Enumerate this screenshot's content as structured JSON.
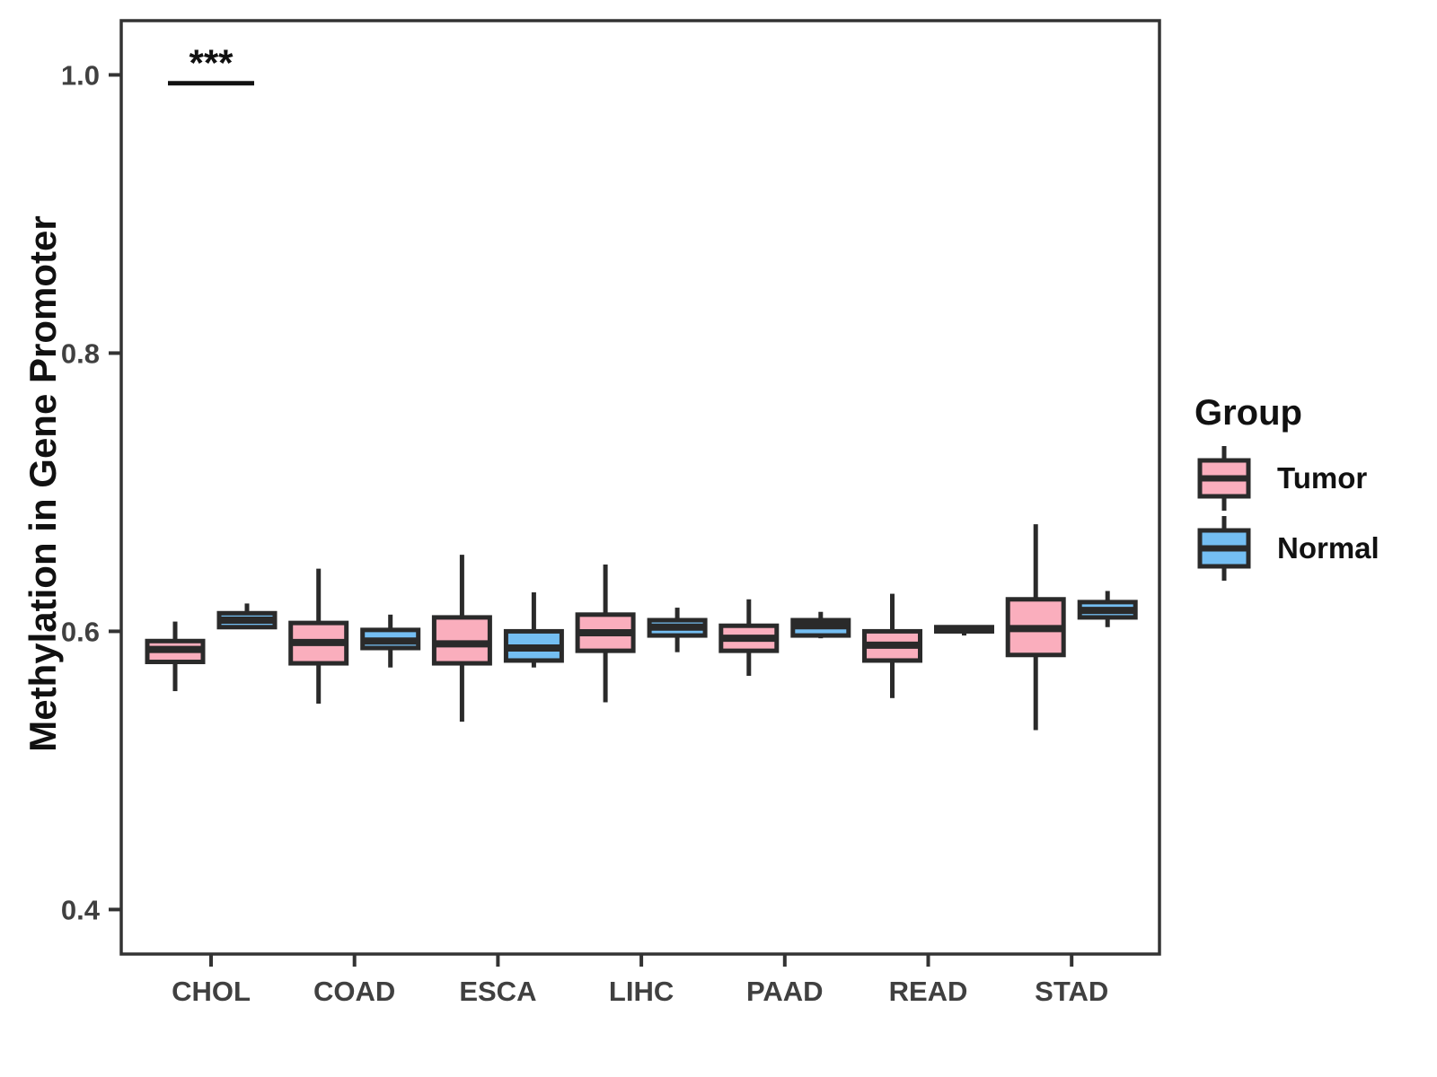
{
  "chart_data": {
    "type": "boxplot",
    "title": "",
    "ylabel": "Methylation in Gene Promoter",
    "xlabel": "",
    "categories": [
      "CHOL",
      "COAD",
      "ESCA",
      "LIHC",
      "PAAD",
      "READ",
      "STAD"
    ],
    "y_ticks": [
      {
        "v": 1.0,
        "label": "1.0"
      },
      {
        "v": 0.8,
        "label": "0.8"
      },
      {
        "v": 0.6,
        "label": "0.6"
      },
      {
        "v": 0.4,
        "label": "0.4"
      }
    ],
    "ylim": [
      0.368,
      1.039
    ],
    "grid": "off",
    "legend": {
      "title": "Group",
      "position": "right",
      "items": [
        {
          "label": "Tumor",
          "color": "#FAAEBD"
        },
        {
          "label": "Normal",
          "color": "#74BEF2"
        }
      ]
    },
    "series": [
      {
        "name": "Tumor",
        "color": "#FAAEBD",
        "boxes": [
          {
            "category": "CHOL",
            "low": 0.557,
            "q1": 0.578,
            "median": 0.587,
            "q3": 0.593,
            "high": 0.607
          },
          {
            "category": "COAD",
            "low": 0.548,
            "q1": 0.577,
            "median": 0.592,
            "q3": 0.606,
            "high": 0.645
          },
          {
            "category": "ESCA",
            "low": 0.535,
            "q1": 0.577,
            "median": 0.591,
            "q3": 0.61,
            "high": 0.655
          },
          {
            "category": "LIHC",
            "low": 0.549,
            "q1": 0.586,
            "median": 0.599,
            "q3": 0.612,
            "high": 0.648
          },
          {
            "category": "PAAD",
            "low": 0.568,
            "q1": 0.586,
            "median": 0.595,
            "q3": 0.604,
            "high": 0.623
          },
          {
            "category": "READ",
            "low": 0.552,
            "q1": 0.579,
            "median": 0.59,
            "q3": 0.6,
            "high": 0.627
          },
          {
            "category": "STAD",
            "low": 0.529,
            "q1": 0.583,
            "median": 0.602,
            "q3": 0.623,
            "high": 0.677
          }
        ]
      },
      {
        "name": "Normal",
        "color": "#74BEF2",
        "boxes": [
          {
            "category": "CHOL",
            "low": 0.603,
            "q1": 0.603,
            "median": 0.608,
            "q3": 0.613,
            "high": 0.62
          },
          {
            "category": "COAD",
            "low": 0.574,
            "q1": 0.588,
            "median": 0.593,
            "q3": 0.601,
            "high": 0.612
          },
          {
            "category": "ESCA",
            "low": 0.574,
            "q1": 0.579,
            "median": 0.588,
            "q3": 0.6,
            "high": 0.628
          },
          {
            "category": "LIHC",
            "low": 0.585,
            "q1": 0.597,
            "median": 0.603,
            "q3": 0.608,
            "high": 0.617
          },
          {
            "category": "PAAD",
            "low": 0.595,
            "q1": 0.597,
            "median": 0.604,
            "q3": 0.608,
            "high": 0.614
          },
          {
            "category": "READ",
            "low": 0.597,
            "q1": 0.6,
            "median": 0.601,
            "q3": 0.603,
            "high": 0.603
          },
          {
            "category": "STAD",
            "low": 0.603,
            "q1": 0.61,
            "median": 0.615,
            "q3": 0.621,
            "high": 0.629
          }
        ]
      }
    ],
    "significance": [
      {
        "category": "CHOL",
        "label": "***",
        "bar_y": 0.994
      }
    ]
  },
  "colors": {
    "box_stroke": "#2A2A2A",
    "panel_border": "#333333",
    "tick_label": "#404040",
    "sig": "#111111"
  }
}
